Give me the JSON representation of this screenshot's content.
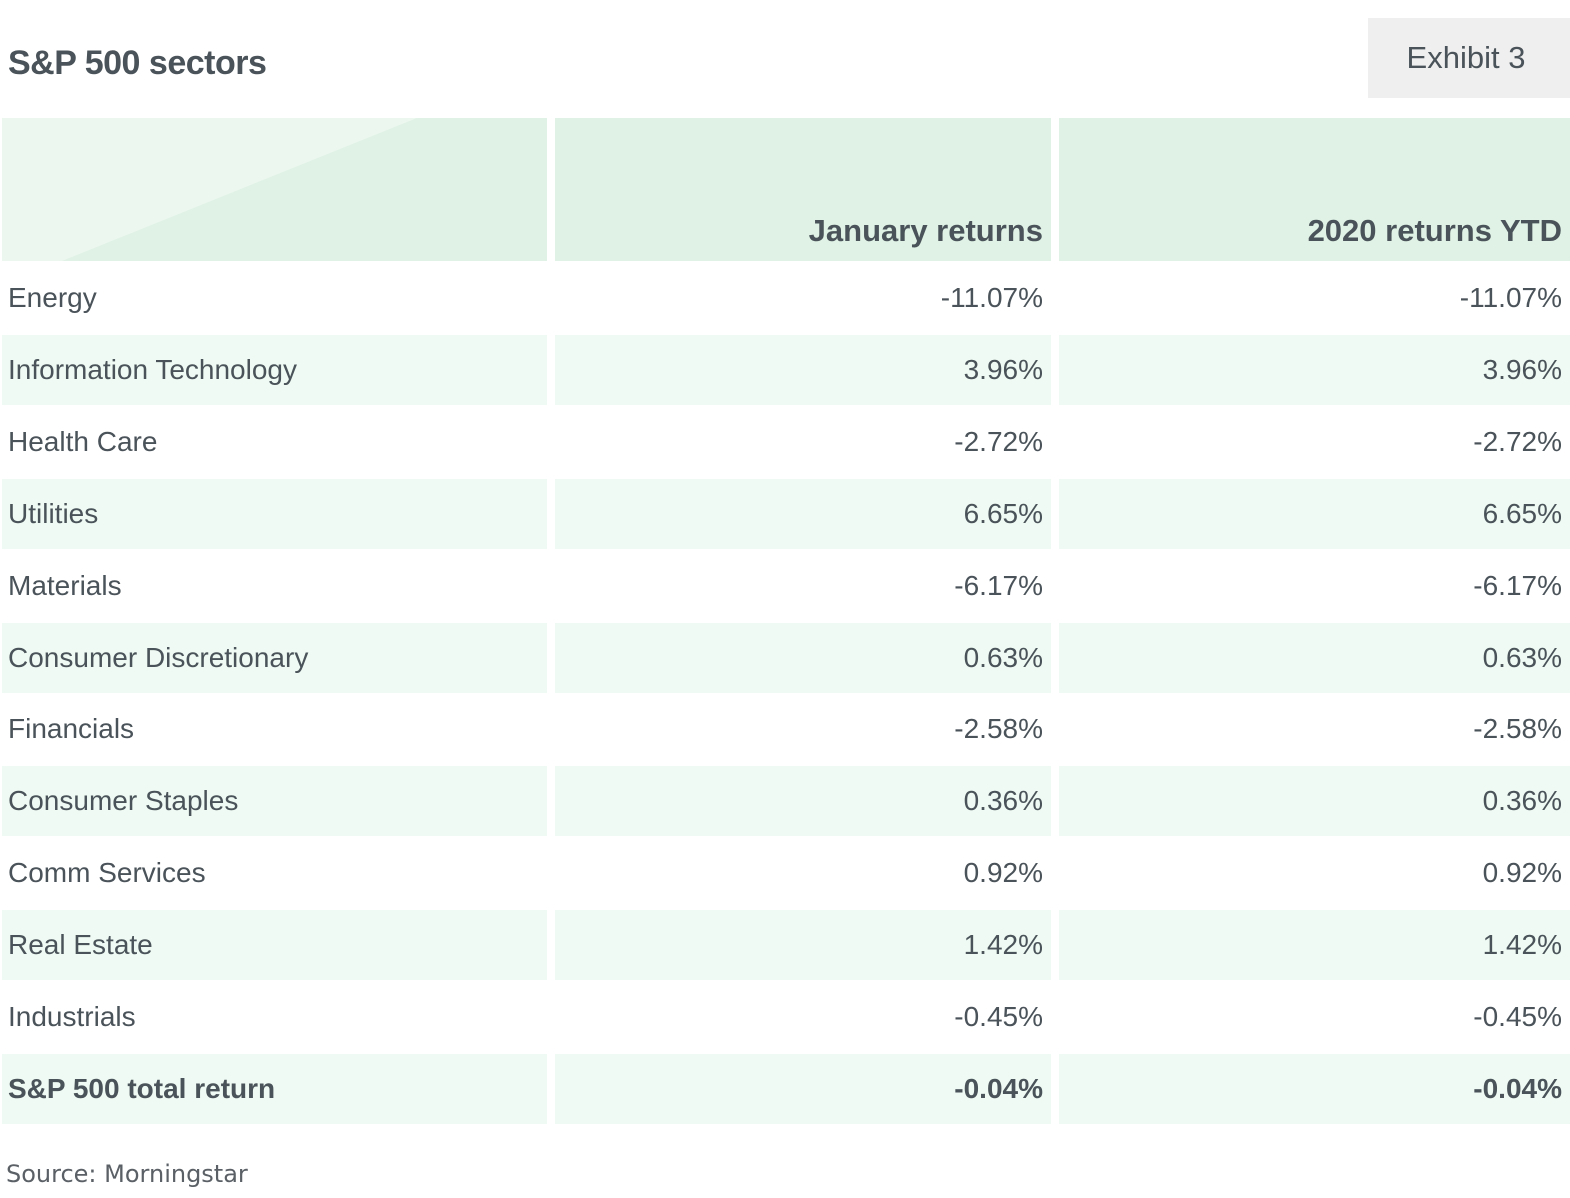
{
  "title": "S&P 500 sectors",
  "exhibit_label": "Exhibit 3",
  "source": "Source: Morningstar",
  "colors": {
    "header_bg": "#dff2e5",
    "shaded_row_bg": "#eefaf3",
    "text": "#4a5359"
  },
  "chart_data": {
    "type": "table",
    "title": "S&P 500 sectors",
    "columns": [
      "",
      "January returns",
      "2020 returns YTD"
    ],
    "rows": [
      [
        "Energy",
        "-11.07%",
        "-11.07%"
      ],
      [
        "Information Technology",
        "3.96%",
        "3.96%"
      ],
      [
        "Health Care",
        "-2.72%",
        "-2.72%"
      ],
      [
        "Utilities",
        "6.65%",
        "6.65%"
      ],
      [
        "Materials",
        "-6.17%",
        "-6.17%"
      ],
      [
        "Consumer Discretionary",
        "0.63%",
        "0.63%"
      ],
      [
        "Financials",
        "-2.58%",
        "-2.58%"
      ],
      [
        "Consumer Staples",
        "0.36%",
        "0.36%"
      ],
      [
        "Comm Services",
        "0.92%",
        "0.92%"
      ],
      [
        "Real Estate",
        "1.42%",
        "1.42%"
      ],
      [
        "Industrials",
        "-0.45%",
        "-0.45%"
      ],
      [
        "S&P 500 total return",
        "-0.04%",
        "-0.04%"
      ]
    ],
    "bold_rows": [
      11
    ]
  }
}
